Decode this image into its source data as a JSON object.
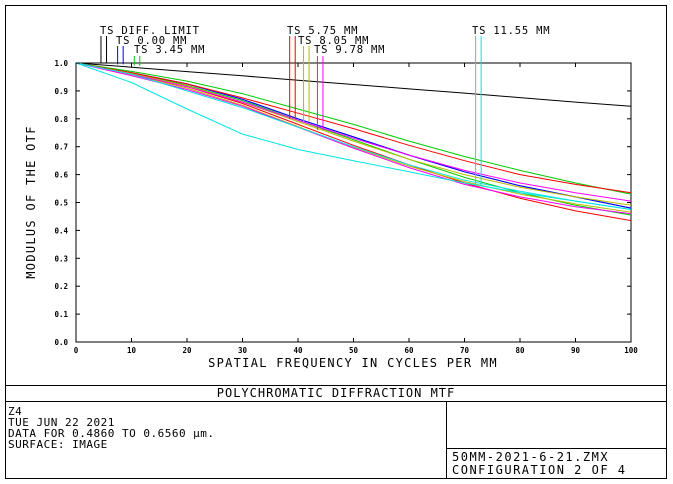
{
  "chart_data": {
    "type": "line",
    "title": "POLYCHROMATIC DIFFRACTION MTF",
    "xlabel": "SPATIAL FREQUENCY IN CYCLES PER MM",
    "ylabel": "MODULUS OF THE OTF",
    "xlim": [
      0,
      100
    ],
    "ylim": [
      0,
      1
    ],
    "x_ticks": [
      "0",
      "10",
      "20",
      "30",
      "40",
      "50",
      "60",
      "70",
      "80",
      "90",
      "100"
    ],
    "y_ticks": [
      "0.0",
      "0.1",
      "0.2",
      "0.3",
      "0.4",
      "0.5",
      "0.6",
      "0.7",
      "0.8",
      "0.9",
      "1.0"
    ],
    "grid": false,
    "x": [
      0,
      10,
      20,
      30,
      40,
      50,
      60,
      70,
      80,
      90,
      100
    ],
    "series": [
      {
        "name": "DIFF. LIMIT",
        "color": "#000000",
        "values": [
          1.0,
          0.985,
          0.969,
          0.954,
          0.938,
          0.923,
          0.907,
          0.892,
          0.876,
          0.86,
          0.845
        ]
      },
      {
        "name": "TS 0.00 MM",
        "color": "#0000ff",
        "values": [
          1.0,
          0.965,
          0.925,
          0.87,
          0.8,
          0.735,
          0.67,
          0.61,
          0.56,
          0.52,
          0.48
        ]
      },
      {
        "name": "TS 0.00 MM",
        "color": "#0000ff",
        "values": [
          1.0,
          0.965,
          0.925,
          0.87,
          0.8,
          0.735,
          0.67,
          0.61,
          0.56,
          0.52,
          0.48
        ]
      },
      {
        "name": "TS 3.45 MM",
        "color": "#00cc00",
        "values": [
          1.0,
          0.97,
          0.935,
          0.89,
          0.835,
          0.78,
          0.72,
          0.665,
          0.615,
          0.57,
          0.53
        ]
      },
      {
        "name": "TS 3.45 MM",
        "color": "#00cc00",
        "values": [
          1.0,
          0.965,
          0.92,
          0.865,
          0.795,
          0.725,
          0.655,
          0.59,
          0.535,
          0.49,
          0.455
        ]
      },
      {
        "name": "TS 5.75 MM",
        "color": "#ff0000",
        "values": [
          1.0,
          0.965,
          0.925,
          0.875,
          0.82,
          0.765,
          0.705,
          0.65,
          0.6,
          0.565,
          0.535
        ]
      },
      {
        "name": "TS 5.75 MM",
        "color": "#ff0000",
        "values": [
          1.0,
          0.96,
          0.915,
          0.855,
          0.78,
          0.705,
          0.635,
          0.57,
          0.515,
          0.47,
          0.435
        ]
      },
      {
        "name": "TS 8.05 MM",
        "color": "#bbbb00",
        "values": [
          1.0,
          0.962,
          0.918,
          0.86,
          0.79,
          0.72,
          0.655,
          0.6,
          0.555,
          0.52,
          0.49
        ]
      },
      {
        "name": "TS 8.05 MM",
        "color": "#bbbb00",
        "values": [
          1.0,
          0.958,
          0.91,
          0.848,
          0.772,
          0.698,
          0.63,
          0.575,
          0.53,
          0.495,
          0.465
        ]
      },
      {
        "name": "TS 9.78 MM",
        "color": "#ff00ff",
        "values": [
          1.0,
          0.96,
          0.915,
          0.86,
          0.795,
          0.73,
          0.67,
          0.615,
          0.57,
          0.535,
          0.505
        ]
      },
      {
        "name": "TS 9.78 MM",
        "color": "#ff00ff",
        "values": [
          1.0,
          0.955,
          0.905,
          0.845,
          0.77,
          0.695,
          0.625,
          0.565,
          0.52,
          0.485,
          0.46
        ]
      },
      {
        "name": "TS 11.55 MM",
        "color": "#00e5e5",
        "values": [
          1.0,
          0.96,
          0.9,
          0.84,
          0.77,
          0.7,
          0.635,
          0.58,
          0.54,
          0.505,
          0.475
        ]
      },
      {
        "name": "TS 11.55 MM",
        "color": "#00e5e5",
        "values": [
          1.0,
          0.93,
          0.835,
          0.745,
          0.69,
          0.65,
          0.61,
          0.57,
          0.535,
          0.505,
          0.475
        ]
      }
    ],
    "legend_markers": [
      {
        "label": "TS DIFF. LIMIT",
        "color": "#000000",
        "x": [
          4.5,
          5.5
        ],
        "bottom": 1.0
      },
      {
        "label": "TS 0.00 MM",
        "color": "#0000ff",
        "x": [
          7.5,
          8.5
        ],
        "bottom": 0.995
      },
      {
        "label": "TS 3.45 MM",
        "color": "#00cc00",
        "x": [
          10.5,
          11.5
        ],
        "bottom": 0.99
      },
      {
        "label": "TS 5.75 MM",
        "color": "#ff0000",
        "x": [
          38.5,
          39.5
        ],
        "bottom": 0.8
      },
      {
        "label": "TS 8.05 MM",
        "color": "#bbbb00",
        "x": [
          41.0,
          42.0
        ],
        "bottom": 0.79
      },
      {
        "label": "TS 9.78 MM",
        "color": "#ff00ff",
        "x": [
          43.5,
          44.5
        ],
        "bottom": 0.76
      },
      {
        "label": "TS 11.55 MM",
        "color": "#00e5e5",
        "x": [
          72.0,
          73.0
        ],
        "bottom": 0.56
      }
    ]
  },
  "info": {
    "name": "Z4",
    "date": "TUE JUN 22 2021",
    "data_range": "DATA FOR 0.4860 TO 0.6560 μm.",
    "surface": "SURFACE: IMAGE"
  },
  "ref": {
    "file": "50MM-2021-6-21.ZMX",
    "config": "CONFIGURATION 2 OF 4"
  }
}
